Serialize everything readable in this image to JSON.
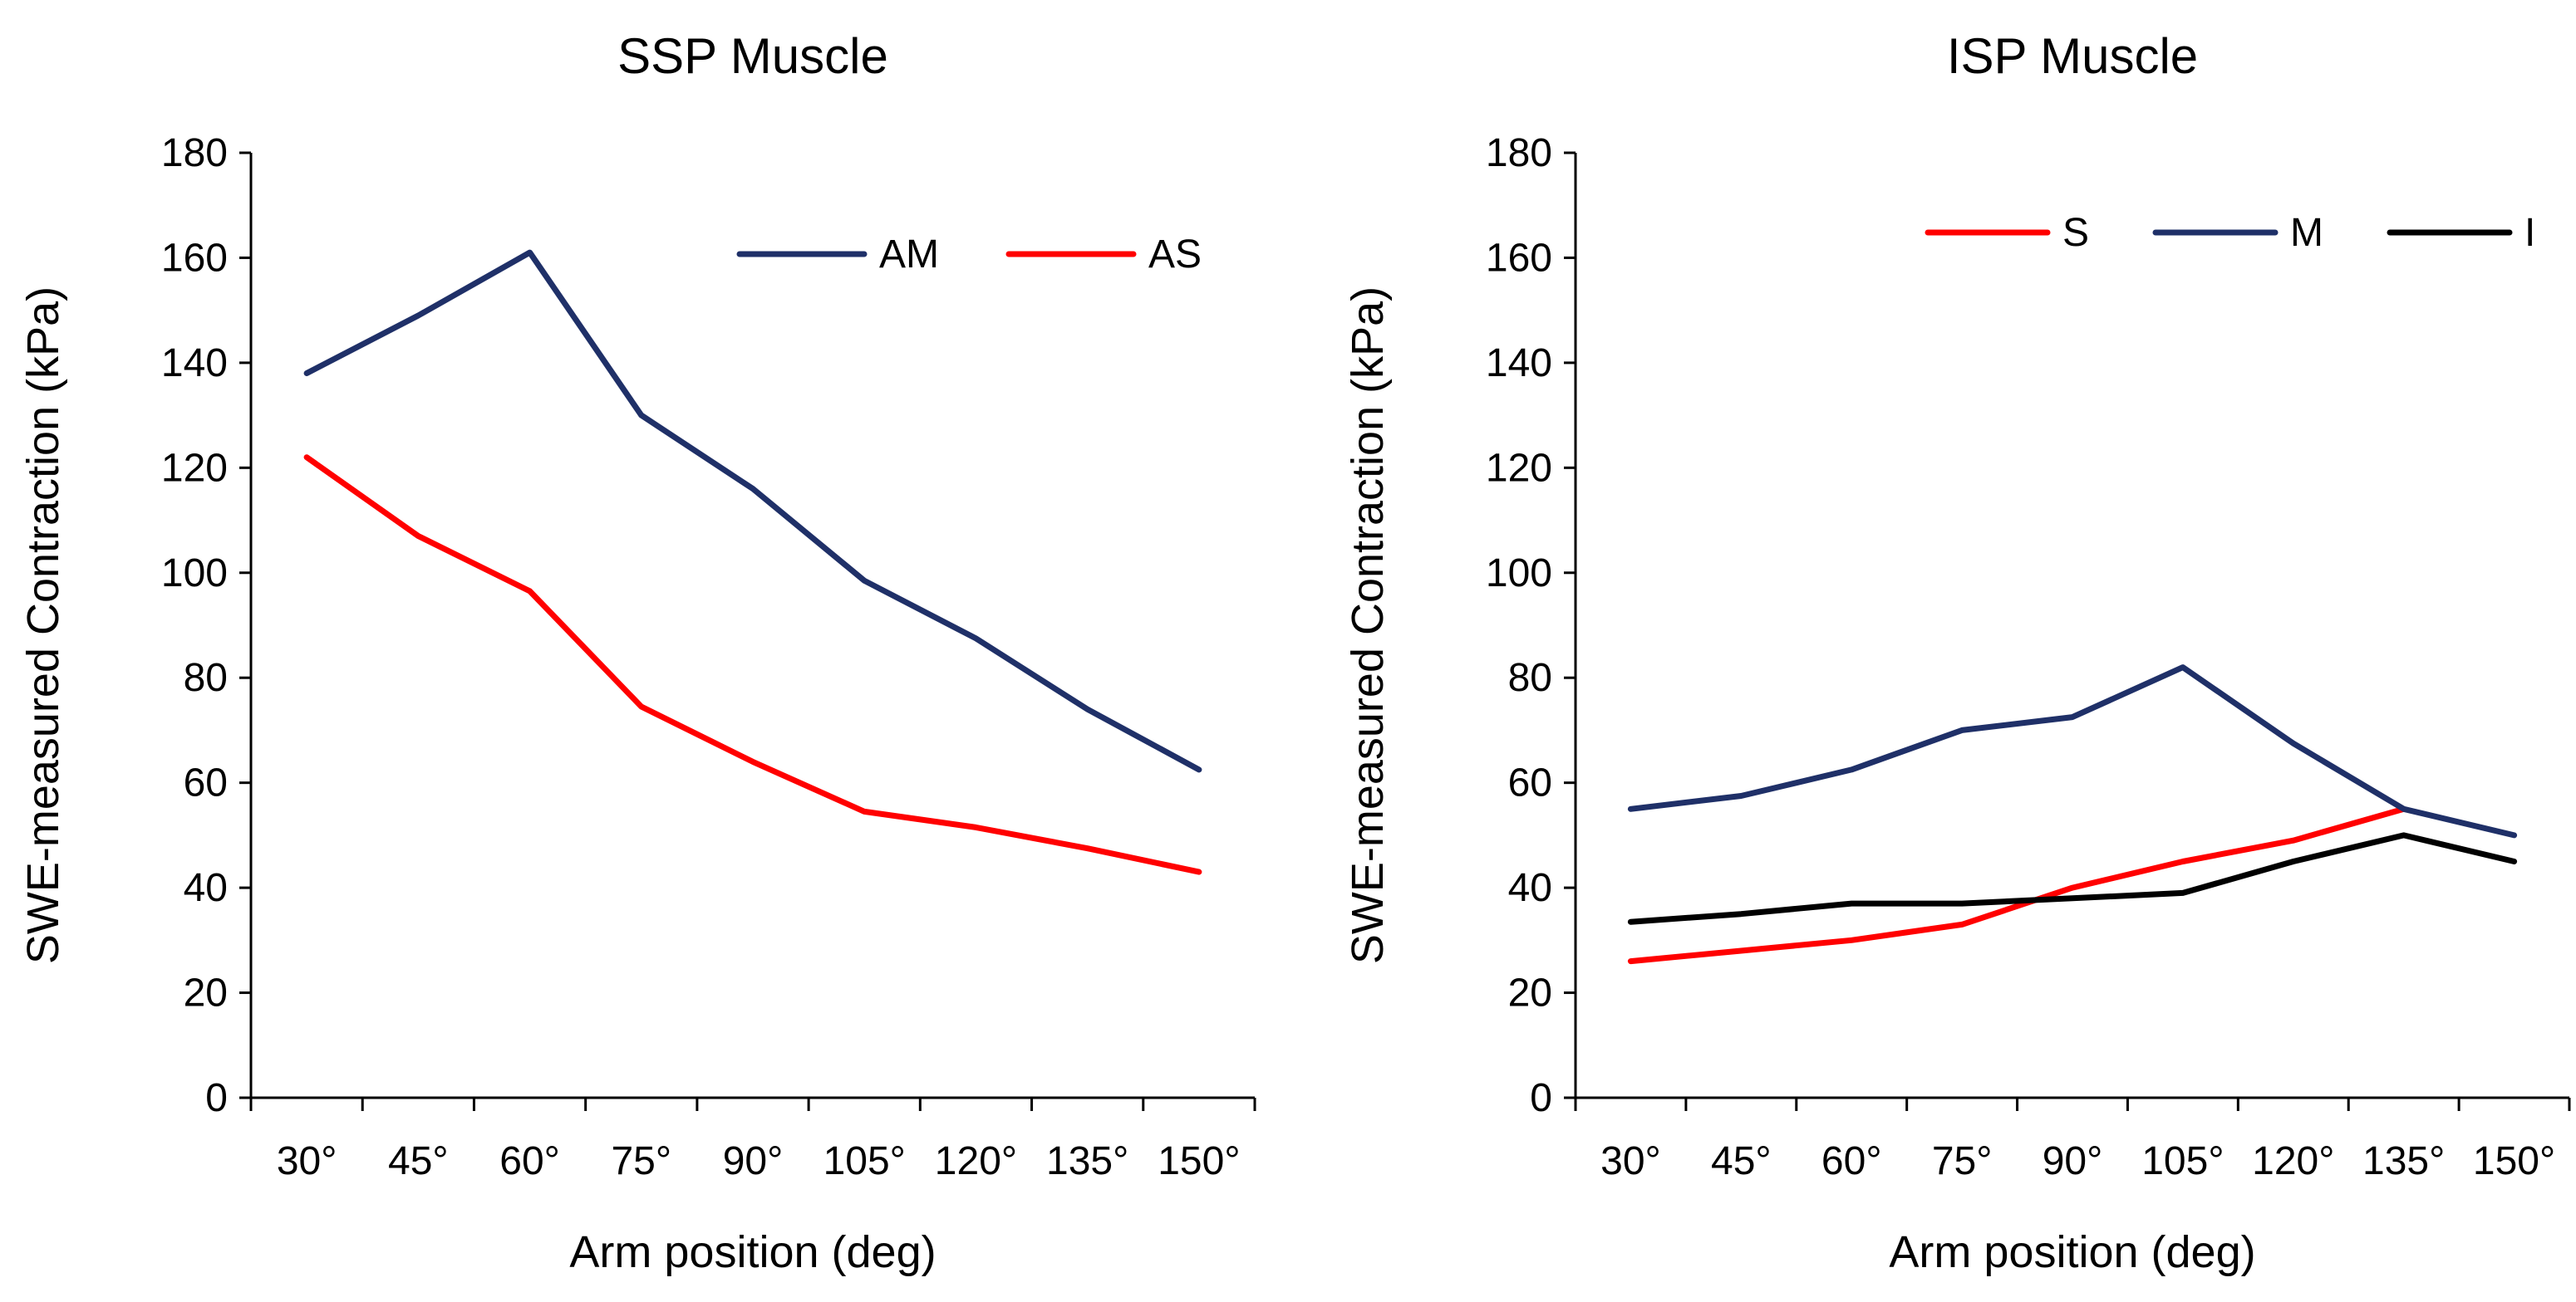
{
  "chart_data": [
    {
      "type": "line",
      "title": "SSP Muscle",
      "xlabel": "Arm position (deg)",
      "ylabel": "SWE-measured Contraction (kPa)",
      "categories": [
        "30°",
        "45°",
        "60°",
        "75°",
        "90°",
        "105°",
        "120°",
        "135°",
        "150°"
      ],
      "ylim": [
        0,
        180
      ],
      "yticks": [
        "0",
        "20",
        "40",
        "60",
        "80",
        "100",
        "120",
        "140",
        "160",
        "180"
      ],
      "grid": false,
      "legend": "top-right",
      "series": [
        {
          "name": "AM",
          "color": "#1f3068",
          "values": [
            138,
            149,
            161,
            130,
            116,
            98.5,
            87.5,
            74,
            62.5
          ]
        },
        {
          "name": "AS",
          "color": "#ff0000",
          "values": [
            122,
            107,
            96.5,
            74.5,
            64,
            54.5,
            51.5,
            47.5,
            43
          ]
        }
      ]
    },
    {
      "type": "line",
      "title": "ISP Muscle",
      "xlabel": "Arm position (deg)",
      "ylabel": "SWE-measured Contraction (kPa)",
      "categories": [
        "30°",
        "45°",
        "60°",
        "75°",
        "90°",
        "105°",
        "120°",
        "135°",
        "150°"
      ],
      "ylim": [
        0,
        180
      ],
      "yticks": [
        "0",
        "20",
        "40",
        "60",
        "80",
        "100",
        "120",
        "140",
        "160",
        "180"
      ],
      "grid": false,
      "legend": "top-right",
      "series": [
        {
          "name": "S",
          "color": "#ff0000",
          "values": [
            26,
            28,
            30,
            33,
            40,
            45,
            49,
            55,
            null
          ]
        },
        {
          "name": "M",
          "color": "#1f3068",
          "values": [
            55,
            57.5,
            62.5,
            70,
            72.5,
            82,
            67.5,
            55,
            50
          ]
        },
        {
          "name": "I",
          "color": "#000000",
          "values": [
            33.5,
            35,
            37,
            37,
            38,
            39,
            45,
            50,
            45
          ]
        }
      ]
    }
  ]
}
